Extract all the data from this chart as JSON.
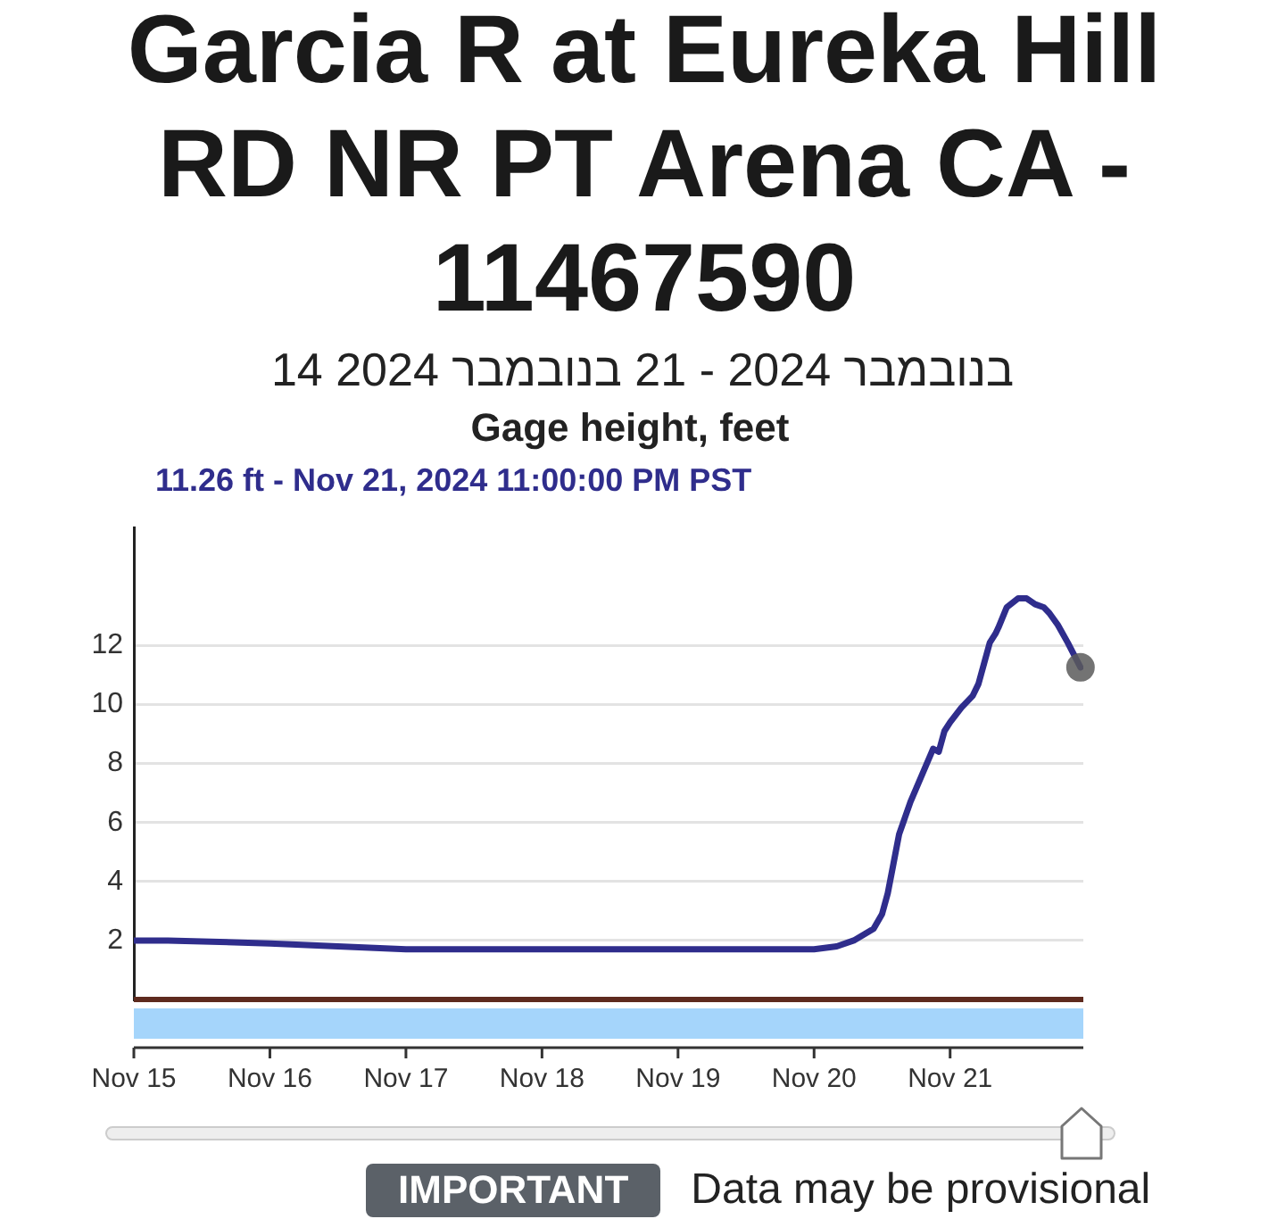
{
  "chart_data": {
    "type": "line",
    "title": "Garcia R at Eureka Hill RD NR PT Arena CA - 11467590",
    "subtitle": "14 בנובמבר 2024 - 21 בנובמבר 2024",
    "ylabel": "Gage height, feet",
    "annotations": [
      "11.26 ft - Nov 21, 2024 11:00:00 PM PST",
      "IMPORTANT",
      "Data may be provisional"
    ],
    "series": [
      {
        "color": "#2f2d8c",
        "x": [
          "2024-11-15T00:00",
          "2024-11-15T06:00",
          "2024-11-16T00:00",
          "2024-11-17T00:00",
          "2024-11-18T00:00",
          "2024-11-19T00:00",
          "2024-11-20T00:00",
          "2024-11-20T04:00",
          "2024-11-20T07:00",
          "2024-11-20T10:30",
          "2024-11-20T12:00",
          "2024-11-20T13:00",
          "2024-11-20T14:00",
          "2024-11-20T15:00",
          "2024-11-20T17:00",
          "2024-11-20T19:00",
          "2024-11-20T21:00",
          "2024-11-20T22:00",
          "2024-11-20T23:00",
          "2024-11-21T00:00",
          "2024-11-21T02:00",
          "2024-11-21T04:00",
          "2024-11-21T05:00",
          "2024-11-21T06:00",
          "2024-11-21T07:00",
          "2024-11-21T08:00",
          "2024-11-21T08:30",
          "2024-11-21T10:00",
          "2024-11-21T12:00",
          "2024-11-21T13:30",
          "2024-11-21T15:00",
          "2024-11-21T16:30",
          "2024-11-21T17:30",
          "2024-11-21T19:00",
          "2024-11-21T20:45",
          "2024-11-21T23:00"
        ],
        "values": [
          2.0,
          2.0,
          1.9,
          1.7,
          1.7,
          1.7,
          1.7,
          1.8,
          2.0,
          2.4,
          2.9,
          3.6,
          4.6,
          5.6,
          6.7,
          7.6,
          8.5,
          8.4,
          9.1,
          9.4,
          9.9,
          10.3,
          10.7,
          11.4,
          12.1,
          12.4,
          12.6,
          13.3,
          13.6,
          13.6,
          13.4,
          13.3,
          13.1,
          12.7,
          12.1,
          11.26
        ]
      },
      {
        "type": "scatter",
        "color": "#5a5a5a",
        "marker": "circle",
        "x": [
          "2024-11-21T23:00"
        ],
        "values": [
          11.26
        ]
      }
    ],
    "xlim": [
      "2024-11-15T00:00",
      "2024-11-21T23:30"
    ],
    "xticks": [
      {
        "value": "2024-11-15",
        "label": "Nov 15"
      },
      {
        "value": "2024-11-16",
        "label": "Nov 16"
      },
      {
        "value": "2024-11-17",
        "label": "Nov 17"
      },
      {
        "value": "2024-11-18",
        "label": "Nov 18"
      },
      {
        "value": "2024-11-19",
        "label": "Nov 19"
      },
      {
        "value": "2024-11-20",
        "label": "Nov 20"
      },
      {
        "value": "2024-11-21",
        "label": "Nov 21"
      }
    ],
    "ylim": [
      0,
      16
    ],
    "yticks": [
      2,
      4,
      6,
      8,
      10,
      12
    ],
    "grid": "y",
    "marker": "none",
    "ref_lines": [
      {
        "axis": "y",
        "value": 0,
        "color": "#5e2a1e"
      }
    ]
  }
}
